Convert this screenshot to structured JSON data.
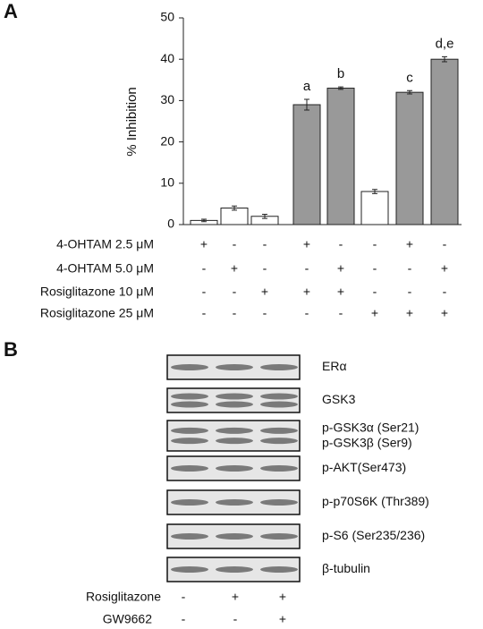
{
  "chart_data": {
    "type": "bar",
    "panel_label": "A",
    "y_label": "% Inhibition",
    "values": [
      1,
      4,
      2,
      29,
      33,
      8,
      32,
      40
    ],
    "errors": [
      0.3,
      0.5,
      0.5,
      1.3,
      0.3,
      0.5,
      0.4,
      0.6
    ],
    "colors": [
      "#ffffff",
      "#ffffff",
      "#ffffff",
      "#999999",
      "#999999",
      "#ffffff",
      "#999999",
      "#999999"
    ],
    "bar_labels": [
      null,
      null,
      null,
      "a",
      "b",
      null,
      "c",
      "d,e"
    ],
    "ylim": [
      0,
      50
    ],
    "yticks": [
      0,
      10,
      20,
      30,
      40,
      50
    ],
    "treatments": [
      {
        "label": "4-OHTAM 2.5 μM",
        "signs": [
          "+",
          "-",
          "-",
          "+",
          "-",
          "-",
          "+",
          "-"
        ]
      },
      {
        "label": "4-OHTAM 5.0 μM",
        "signs": [
          "-",
          "+",
          "-",
          "-",
          "+",
          "-",
          "-",
          "+"
        ]
      },
      {
        "label": "Rosiglitazone 10 μM",
        "signs": [
          "-",
          "-",
          "+",
          "+",
          "+",
          "-",
          "-",
          "-"
        ]
      },
      {
        "label": "Rosiglitazone 25 μM",
        "signs": [
          "-",
          "-",
          "-",
          "-",
          "-",
          "+",
          "+",
          "+"
        ]
      }
    ]
  },
  "panel_b": {
    "label": "B",
    "blots": [
      [
        "ERα"
      ],
      [
        "GSK3"
      ],
      [
        "p-GSK3α (Ser21)",
        "p-GSK3β (Ser9)"
      ],
      [
        "p-AKT(Ser473)"
      ],
      [
        "p-p70S6K (Thr389)"
      ],
      [
        "p-S6 (Ser235/236)"
      ],
      [
        "β-tubulin"
      ]
    ],
    "treatments": [
      {
        "label": "Rosiglitazone",
        "signs": [
          "-",
          "+",
          "+"
        ]
      },
      {
        "label": "GW9662",
        "signs": [
          "-",
          "-",
          "+"
        ]
      }
    ]
  }
}
